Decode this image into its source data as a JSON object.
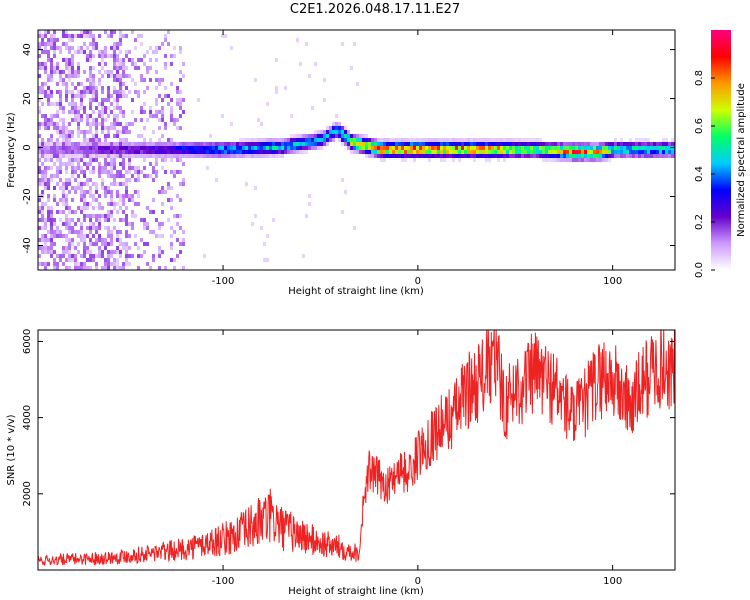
{
  "figure_title": "C2E1.2026.048.17.11.E27",
  "chart_data": [
    {
      "type": "heatmap",
      "name": "spectrogram",
      "title": "C2E1.2026.048.17.11.E27",
      "xlabel": "Height of straight line (km)",
      "ylabel": "Frequency (Hz)",
      "xlim": [
        -195,
        132
      ],
      "ylim": [
        -50,
        48
      ],
      "xticks": [
        -100,
        0,
        100
      ],
      "yticks": [
        -40,
        -20,
        0,
        20,
        40
      ],
      "colorbar": {
        "label": "Normalized spectral amplitude",
        "range": [
          0,
          1
        ],
        "ticks": [
          "0.0",
          "0.2",
          "0.4",
          "0.6",
          "0.8"
        ],
        "colors": [
          "#ffffff",
          "#cc99ff",
          "#6600cc",
          "#0000ff",
          "#00ccff",
          "#00ff66",
          "#ccff00",
          "#ff9900",
          "#ff0000",
          "#ff0080"
        ]
      },
      "ridge": {
        "description_points_x": [
          -195,
          -130,
          -100,
          -70,
          -50,
          -42,
          -35,
          -20,
          0,
          20,
          35,
          60,
          80,
          92,
          100,
          132
        ],
        "frequency_hz": [
          0,
          0,
          0,
          1,
          4,
          8,
          3,
          0,
          0,
          0,
          0,
          0,
          -1,
          -1,
          0,
          0
        ],
        "amplitude": [
          0.15,
          0.3,
          0.45,
          0.5,
          0.45,
          0.5,
          0.7,
          0.9,
          0.9,
          0.85,
          0.9,
          0.6,
          0.9,
          0.85,
          0.55,
          0.5
        ]
      },
      "noise_region_x": [
        -195,
        -120
      ]
    },
    {
      "type": "line",
      "name": "snr",
      "xlabel": "Height of straight line (km)",
      "ylabel": "SNR (10 * v/v)",
      "xlim": [
        -195,
        132
      ],
      "ylim": [
        0,
        6300
      ],
      "xticks": [
        -100,
        0,
        100
      ],
      "yticks": [
        2000,
        4000,
        6000
      ],
      "color": "#ee2222",
      "series": [
        {
          "name": "SNR",
          "x": [
            -195,
            -180,
            -160,
            -140,
            -120,
            -100,
            -90,
            -80,
            -75,
            -70,
            -60,
            -50,
            -40,
            -35,
            -30,
            -28,
            -25,
            -20,
            -15,
            -10,
            -5,
            0,
            5,
            10,
            15,
            20,
            25,
            30,
            35,
            40,
            45,
            50,
            55,
            60,
            65,
            70,
            75,
            80,
            85,
            90,
            95,
            100,
            105,
            110,
            115,
            120,
            125,
            132
          ],
          "y": [
            250,
            280,
            320,
            420,
            550,
            800,
            1000,
            1300,
            1400,
            1100,
            900,
            700,
            600,
            500,
            450,
            1800,
            2600,
            2400,
            2200,
            2700,
            2500,
            3000,
            3400,
            3700,
            3900,
            4200,
            4700,
            4900,
            5200,
            5500,
            4300,
            4800,
            4900,
            5200,
            5000,
            4800,
            4400,
            4000,
            4300,
            4800,
            5100,
            5000,
            4600,
            4300,
            4900,
            5200,
            5400,
            5200
          ]
        }
      ]
    }
  ]
}
